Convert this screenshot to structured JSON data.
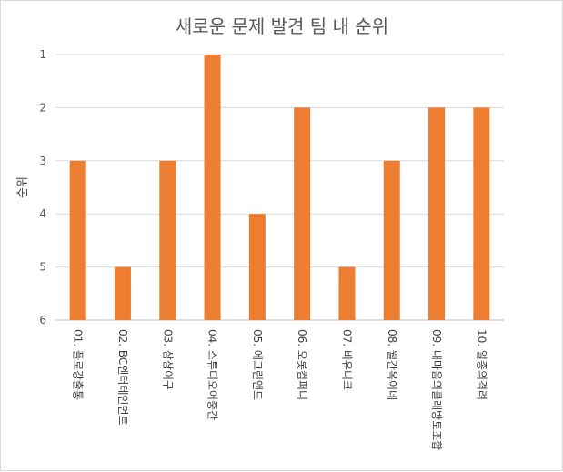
{
  "chart_data": {
    "type": "bar",
    "title": "새로운 문제 발견 팀 내 순위",
    "xlabel": "",
    "ylabel": "순위",
    "y_reversed": true,
    "ylim": [
      1,
      6
    ],
    "yticks": [
      "1",
      "2",
      "3",
      "4",
      "5",
      "6"
    ],
    "grid": true,
    "legend": "none",
    "bar_color": "#ED7D31",
    "categories": [
      "01. 플로강출통",
      "02. BC엔터테인먼트",
      "03. 삼삼이구",
      "04. 스튜디오어중간",
      "05. 에그린앤드",
      "06. 오롯컴퍼니",
      "07. 비유니크",
      "08. 웰간옥이네",
      "09. 내마음의클래방토조합",
      "10. 일종의격려"
    ],
    "values": [
      3,
      5,
      3,
      1,
      4,
      2,
      5,
      3,
      2,
      2
    ]
  }
}
